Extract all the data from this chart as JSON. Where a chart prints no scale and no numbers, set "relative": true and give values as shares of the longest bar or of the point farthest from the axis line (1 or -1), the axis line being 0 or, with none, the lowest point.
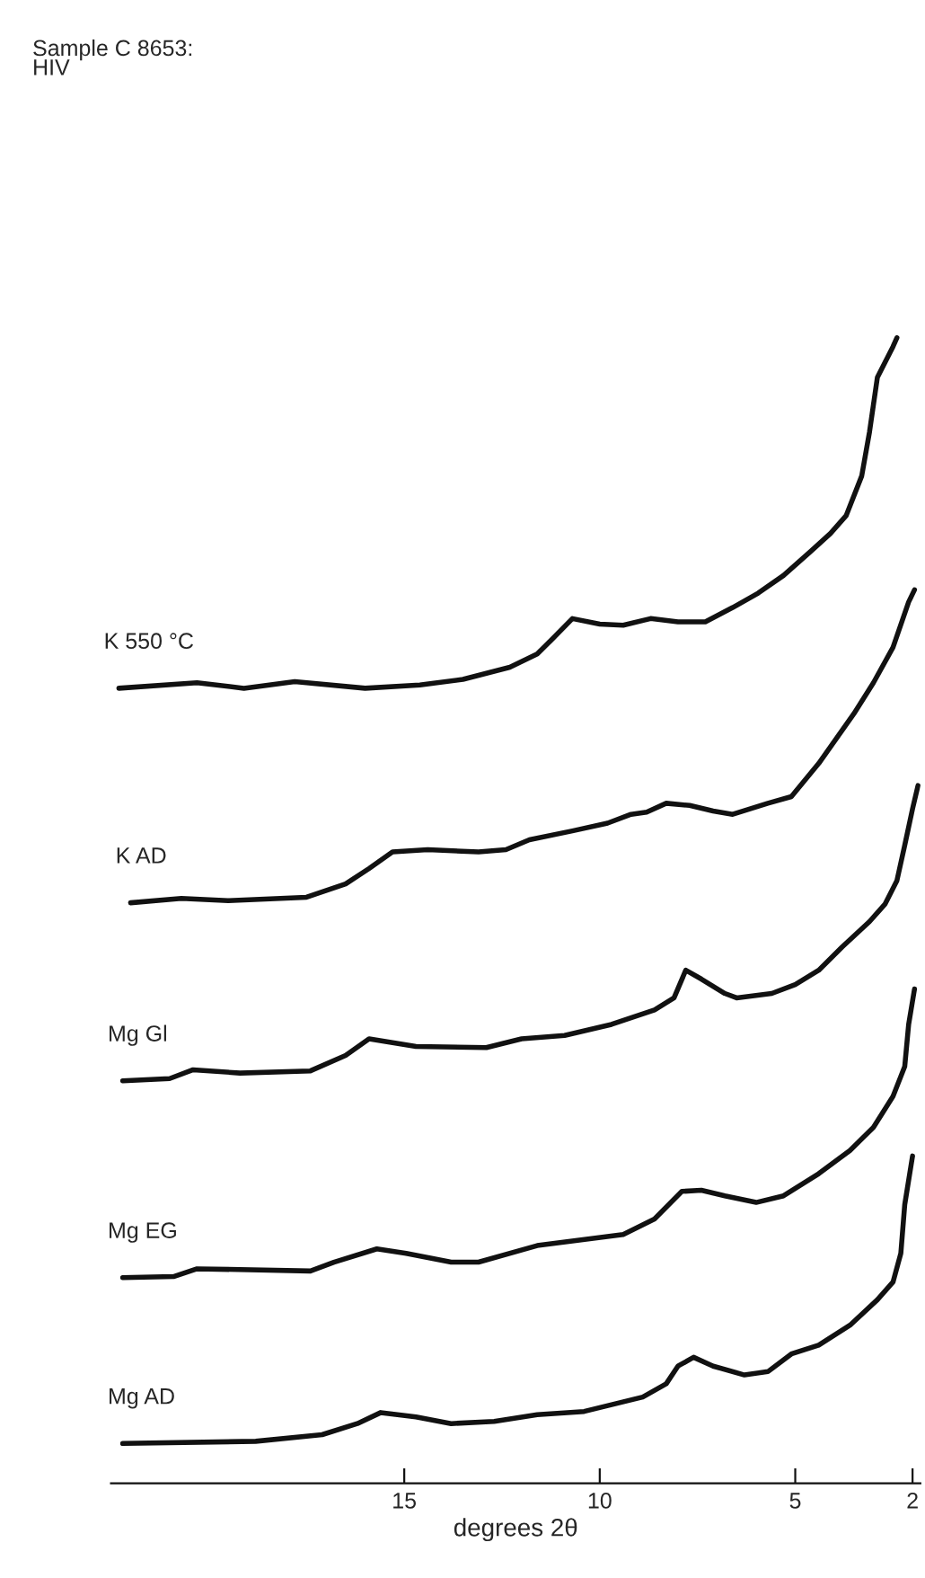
{
  "chart_data": {
    "type": "line",
    "title": "Sample C 8653:\nHIV",
    "xlabel": "degrees 2θ",
    "relative": true,
    "xlim": [
      22.5,
      1.8
    ],
    "xticks": [
      15,
      10,
      5,
      2
    ],
    "grid": false,
    "legend": false,
    "marker": "none",
    "line_style": "solid",
    "series": [
      {
        "name": "K 550 °C",
        "color": "#111111",
        "x": [
          22.3,
          20.3,
          19.1,
          17.8,
          16.0,
          14.6,
          13.5,
          12.3,
          11.6,
          11.2,
          10.7,
          10.0,
          9.4,
          8.7,
          8.0,
          7.3,
          6.6,
          5.95,
          5.3,
          4.6,
          4.1,
          3.7,
          3.3,
          3.1,
          2.9,
          2.5,
          2.4
        ],
        "values": [
          0.683,
          0.688,
          0.683,
          0.689,
          0.683,
          0.686,
          0.691,
          0.702,
          0.714,
          0.728,
          0.746,
          0.741,
          0.74,
          0.746,
          0.743,
          0.743,
          0.756,
          0.769,
          0.785,
          0.807,
          0.823,
          0.839,
          0.875,
          0.915,
          0.964,
          0.992,
          1.0
        ]
      },
      {
        "name": "K AD",
        "color": "#111111",
        "x": [
          22.0,
          20.7,
          19.5,
          17.5,
          16.5,
          15.9,
          15.3,
          14.4,
          13.1,
          12.4,
          11.8,
          10.7,
          9.8,
          9.2,
          8.8,
          8.3,
          7.7,
          7.1,
          6.6,
          5.7,
          5.1,
          4.4,
          3.5,
          3.0,
          2.5,
          2.1,
          1.95
        ],
        "values": [
          0.489,
          0.493,
          0.491,
          0.494,
          0.506,
          0.52,
          0.535,
          0.537,
          0.535,
          0.537,
          0.546,
          0.554,
          0.561,
          0.569,
          0.571,
          0.579,
          0.577,
          0.572,
          0.569,
          0.579,
          0.585,
          0.615,
          0.66,
          0.688,
          0.72,
          0.761,
          0.772
        ]
      },
      {
        "name": "Mg Gl",
        "color": "#111111",
        "x": [
          22.2,
          21.0,
          20.4,
          19.2,
          17.4,
          16.5,
          15.9,
          14.7,
          12.9,
          12.0,
          10.9,
          9.7,
          8.6,
          8.1,
          7.8,
          7.4,
          6.8,
          6.5,
          5.6,
          5.0,
          4.4,
          3.8,
          3.1,
          2.7,
          2.4,
          2.2,
          2.0,
          1.86
        ],
        "values": [
          0.328,
          0.33,
          0.338,
          0.335,
          0.337,
          0.351,
          0.366,
          0.359,
          0.358,
          0.366,
          0.369,
          0.379,
          0.392,
          0.403,
          0.428,
          0.42,
          0.407,
          0.403,
          0.407,
          0.415,
          0.428,
          0.449,
          0.472,
          0.488,
          0.509,
          0.541,
          0.574,
          0.595
        ]
      },
      {
        "name": "Mg EG",
        "color": "#111111",
        "x": [
          22.2,
          20.9,
          20.3,
          17.4,
          16.8,
          15.7,
          14.95,
          13.8,
          13.1,
          11.6,
          9.4,
          8.6,
          7.9,
          7.4,
          6.8,
          6.0,
          5.3,
          4.4,
          3.6,
          3.0,
          2.5,
          2.2,
          2.1,
          1.95
        ],
        "values": [
          0.15,
          0.151,
          0.158,
          0.156,
          0.164,
          0.176,
          0.172,
          0.164,
          0.164,
          0.179,
          0.189,
          0.203,
          0.228,
          0.229,
          0.224,
          0.218,
          0.224,
          0.244,
          0.265,
          0.286,
          0.314,
          0.341,
          0.379,
          0.411
        ]
      },
      {
        "name": "Mg AD",
        "color": "#111111",
        "x": [
          22.2,
          18.8,
          17.1,
          16.2,
          15.6,
          14.7,
          13.8,
          12.7,
          11.6,
          10.4,
          8.9,
          8.3,
          8.0,
          7.6,
          7.1,
          6.3,
          5.7,
          5.1,
          4.4,
          3.6,
          2.9,
          2.5,
          2.3,
          2.2,
          2.0
        ],
        "values": [
          0.0,
          0.002,
          0.008,
          0.018,
          0.028,
          0.024,
          0.018,
          0.02,
          0.026,
          0.029,
          0.042,
          0.054,
          0.07,
          0.078,
          0.07,
          0.062,
          0.065,
          0.081,
          0.089,
          0.107,
          0.13,
          0.146,
          0.172,
          0.216,
          0.26
        ]
      }
    ]
  }
}
